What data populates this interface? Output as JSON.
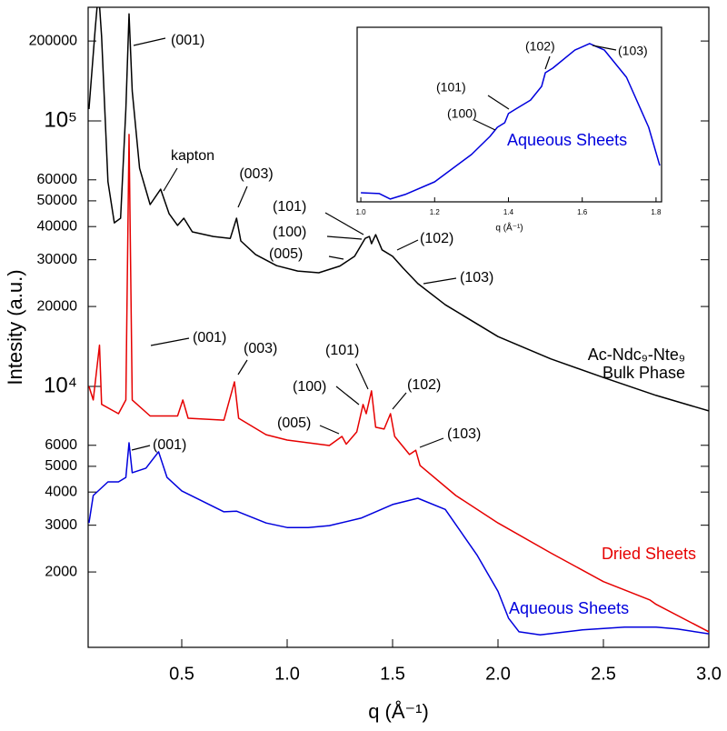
{
  "chart_data": [
    {
      "type": "line",
      "log_y": true,
      "x_label": "q (Å⁻¹)",
      "y_label": "Intesity (a.u.)",
      "xlim": [
        0.056,
        3.0
      ],
      "xticks": [
        0.5,
        {
          "value": 1,
          "label": "1.0"
        },
        1.5,
        {
          "value": 2,
          "label": "2.0"
        },
        2.5,
        {
          "value": 3,
          "label": "3.0"
        }
      ],
      "ylim": [
        1040,
        268000
      ],
      "yticks": [
        2000,
        3000,
        4000,
        5000,
        6000,
        {
          "value": 10000,
          "label": "10⁴"
        },
        20000,
        30000,
        40000,
        50000,
        60000,
        {
          "value": 100000,
          "label": "10⁵"
        },
        200000
      ],
      "series": [
        {
          "name": "Ac-Ndc₉-Nte₉ Bulk Phase",
          "color": "#000000",
          "x": [
            0.06,
            0.09,
            0.105,
            0.12,
            0.15,
            0.18,
            0.21,
            0.235,
            0.25,
            0.265,
            0.3,
            0.35,
            0.4,
            0.44,
            0.48,
            0.51,
            0.55,
            0.65,
            0.73,
            0.76,
            0.78,
            0.85,
            0.95,
            1.05,
            1.15,
            1.25,
            1.32,
            1.37,
            1.39,
            1.4,
            1.42,
            1.45,
            1.5,
            1.55,
            1.62,
            1.75,
            2.0,
            2.25,
            2.5,
            2.75,
            3.0
          ],
          "values": [
            110800,
            225000,
            310000,
            208000,
            59000,
            41300,
            43000,
            110800,
            253000,
            129700,
            66300,
            48400,
            55300,
            44700,
            40400,
            43000,
            38200,
            36700,
            36100,
            43000,
            35300,
            31400,
            28500,
            27200,
            26800,
            28400,
            30900,
            36100,
            36700,
            34500,
            37300,
            32700,
            30900,
            27900,
            24400,
            20300,
            15400,
            12700,
            10800,
            9250,
            8090
          ]
        },
        {
          "name": "Dried Sheets",
          "color": "#e60000",
          "x": [
            0.06,
            0.08,
            0.11,
            0.12,
            0.2,
            0.235,
            0.25,
            0.265,
            0.35,
            0.48,
            0.505,
            0.53,
            0.7,
            0.75,
            0.77,
            0.9,
            1.0,
            1.2,
            1.26,
            1.28,
            1.33,
            1.36,
            1.375,
            1.4,
            1.42,
            1.46,
            1.49,
            1.51,
            1.58,
            1.61,
            1.63,
            1.8,
            2.0,
            2.25,
            2.5,
            2.72,
            2.75,
            3.0
          ],
          "values": [
            10000,
            8890,
            14300,
            8560,
            7890,
            8890,
            88900,
            8890,
            7740,
            7740,
            8890,
            7590,
            7460,
            10400,
            7590,
            6580,
            6280,
            5990,
            6480,
            6060,
            6740,
            8550,
            7890,
            9620,
            7020,
            6910,
            7890,
            6480,
            5540,
            5750,
            5040,
            3880,
            3060,
            2360,
            1840,
            1570,
            1510,
            1190
          ]
        },
        {
          "name": "Aqueous Sheets",
          "color": "#0000dd",
          "x": [
            0.06,
            0.08,
            0.15,
            0.2,
            0.235,
            0.25,
            0.265,
            0.33,
            0.39,
            0.43,
            0.5,
            0.7,
            0.76,
            0.9,
            1.0,
            1.1,
            1.2,
            1.35,
            1.5,
            1.62,
            1.75,
            1.9,
            2.0,
            2.05,
            2.1,
            2.2,
            2.4,
            2.6,
            2.75,
            2.85,
            3.0
          ],
          "values": [
            3060,
            3880,
            4370,
            4370,
            4540,
            6130,
            4730,
            4920,
            5670,
            4540,
            4040,
            3370,
            3390,
            3060,
            2940,
            2940,
            2990,
            3190,
            3590,
            3790,
            3440,
            2320,
            1690,
            1340,
            1190,
            1160,
            1210,
            1240,
            1240,
            1220,
            1170
          ]
        }
      ],
      "annotations": [
        "(001)",
        "kapton",
        "(003)",
        "(101)",
        "(100)",
        "(005)",
        "(102)",
        "(103)",
        "(001)",
        "(003)",
        "(101)",
        "(100)",
        "(005)",
        "(102)",
        "(103)",
        "(001)"
      ]
    },
    {
      "type": "line",
      "log_y": false,
      "x_label": "q (Å⁻¹)",
      "xlim": [
        0.99,
        1.815
      ],
      "xticks": [
        {
          "value": 1,
          "label": "1.0"
        },
        1.2,
        1.4,
        1.6,
        1.8
      ],
      "ylim": [
        2888,
        3883
      ],
      "series": [
        {
          "name": "Aqueous Sheets",
          "color": "#0000dd",
          "x": [
            1.0,
            1.05,
            1.08,
            1.12,
            1.2,
            1.3,
            1.35,
            1.37,
            1.39,
            1.4,
            1.42,
            1.46,
            1.49,
            1.5,
            1.52,
            1.58,
            1.62,
            1.66,
            1.72,
            1.78,
            1.81
          ],
          "values": [
            2940,
            2935,
            2904,
            2930,
            3002,
            3158,
            3261,
            3313,
            3339,
            3391,
            3417,
            3468,
            3546,
            3624,
            3650,
            3753,
            3790,
            3753,
            3598,
            3313,
            3095
          ]
        }
      ],
      "annotations": [
        "(100)",
        "(101)",
        "(102)",
        "(103)"
      ]
    }
  ]
}
